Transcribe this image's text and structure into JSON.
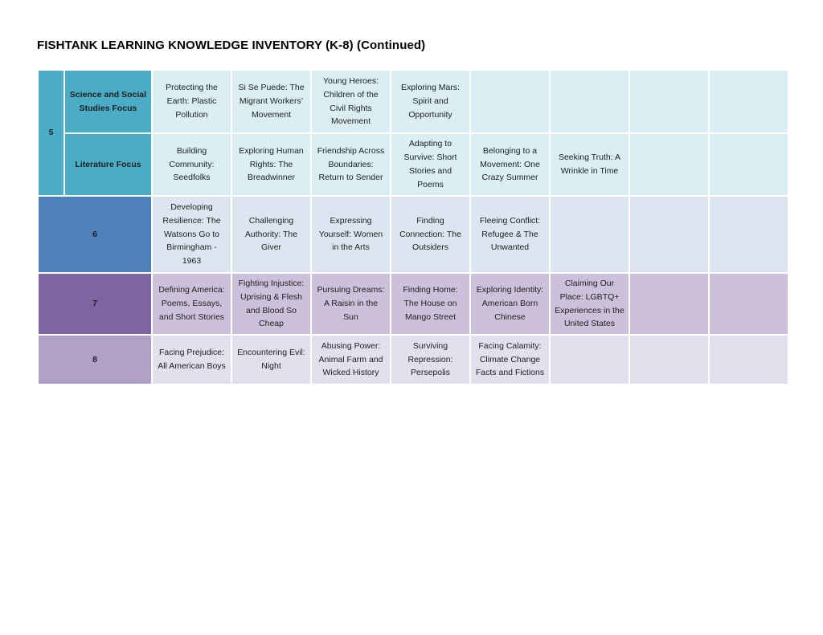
{
  "page": {
    "title": "FISHTANK LEARNING KNOWLEDGE INVENTORY (K-8) (Continued)"
  },
  "colors": {
    "grade5_header": "#4BACC6",
    "grade6_header": "#4F81BD",
    "grade7_header": "#8064A2",
    "grade8_header": "#B1A0C7",
    "grade5_cell": "#DAEEF3",
    "grade6_cell": "#DCE6F1",
    "grade7_cell": "#CCC0DA",
    "grade8_cell": "#E4DFEC"
  },
  "table": {
    "grade5": {
      "label": "5",
      "science_focus_label": "Science and Social Studies Focus",
      "literature_focus_label": "Literature Focus",
      "science_cells": [
        "Protecting the Earth: Plastic Pollution",
        "Si Se Puede: The Migrant Workers’ Movement",
        "Young Heroes: Children of the Civil Rights Movement",
        "Exploring Mars: Spirit and Opportunity",
        "",
        "",
        "",
        ""
      ],
      "literature_cells": [
        "Building Community: Seedfolks",
        "Exploring Human Rights: The Breadwinner",
        "Friendship Across Boundaries: Return to Sender",
        "Adapting to Survive: Short Stories and Poems",
        "Belonging to a Movement: One Crazy Summer",
        "Seeking Truth: A Wrinkle in Time",
        "",
        ""
      ]
    },
    "grade6": {
      "label": "6",
      "cells": [
        "Developing Resilience: The Watsons Go to Birmingham - 1963",
        "Challenging Authority: The Giver",
        "Expressing Yourself: Women in the Arts",
        "Finding Connection: The Outsiders",
        "Fleeing Conflict: Refugee & The Unwanted",
        "",
        "",
        ""
      ]
    },
    "grade7": {
      "label": "7",
      "cells": [
        "Defining America: Poems, Essays, and Short Stories",
        "Fighting Injustice: Uprising & Flesh and Blood So Cheap",
        "Pursuing Dreams: A Raisin in the Sun",
        "Finding Home: The House on Mango Street",
        "Exploring Identity: American Born Chinese",
        "Claiming Our Place: LGBTQ+ Experiences in the United States",
        "",
        ""
      ]
    },
    "grade8": {
      "label": "8",
      "cells": [
        "Facing Prejudice: All American Boys",
        "Encountering Evil: Night",
        "Abusing Power: Animal Farm and Wicked History",
        "Surviving Repression: Persepolis",
        "Facing Calamity: Climate Change Facts and Fictions",
        "",
        "",
        ""
      ]
    }
  }
}
